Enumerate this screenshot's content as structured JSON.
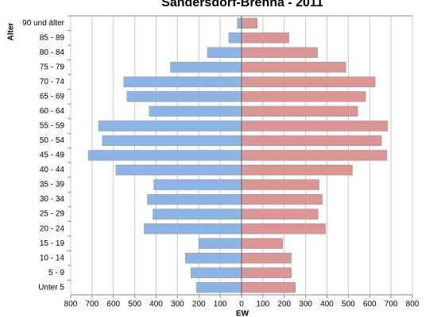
{
  "chart_data": {
    "type": "pyramid",
    "title": "Sandersdorf-Brehna - 2011",
    "y_label": "Alter",
    "x_label": "EW",
    "categories": [
      "Unter 5",
      "5 - 9",
      "10 - 14",
      "15 - 19",
      "20 - 24",
      "25 - 29",
      "30 - 34",
      "35 - 39",
      "40 - 44",
      "45 - 49",
      "50 - 54",
      "55 - 59",
      "60 - 64",
      "65 - 69",
      "70 - 74",
      "75 - 79",
      "80 - 84",
      "85 - 89",
      "90 und älter"
    ],
    "series": [
      {
        "side": "left",
        "color": "#8db4e2",
        "values": [
          211,
          237,
          263,
          200,
          456,
          415,
          441,
          411,
          589,
          718,
          652,
          670,
          433,
          537,
          552,
          333,
          160,
          60,
          20
        ]
      },
      {
        "side": "right",
        "color": "#da9694",
        "values": [
          252,
          233,
          233,
          193,
          393,
          359,
          378,
          363,
          519,
          681,
          656,
          685,
          544,
          581,
          626,
          489,
          356,
          222,
          74
        ]
      }
    ],
    "xlim": [
      -800,
      800
    ],
    "xticks": [
      {
        "value": -800,
        "label": "800"
      },
      {
        "value": -700,
        "label": "700"
      },
      {
        "value": -600,
        "label": "600"
      },
      {
        "value": -500,
        "label": "500"
      },
      {
        "value": -400,
        "label": "400"
      },
      {
        "value": -300,
        "label": "300"
      },
      {
        "value": -200,
        "label": "200"
      },
      {
        "value": -100,
        "label": "100"
      },
      0,
      100,
      200,
      300,
      400,
      500,
      600,
      700,
      800
    ],
    "grid": true
  }
}
